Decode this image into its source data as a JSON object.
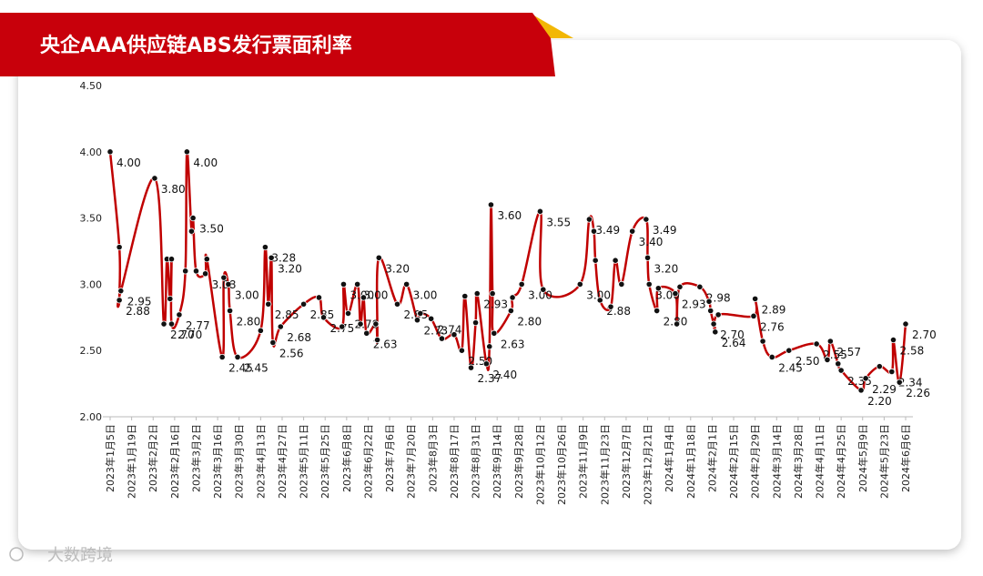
{
  "chart_data": {
    "type": "line",
    "title": "央企AAA供应链ABS发行票面利率",
    "watermark": "大数跨境",
    "ylim": [
      2,
      4.5
    ],
    "yticks": [
      {
        "value": 2,
        "label": "2.00"
      },
      {
        "value": 2.5,
        "label": "2.50"
      },
      {
        "value": 3,
        "label": "3.00"
      },
      {
        "value": 3.5,
        "label": "3.50"
      },
      {
        "value": 4,
        "label": "4.00"
      },
      {
        "value": 4.5,
        "label": "4.50"
      }
    ],
    "xlim": [
      "2023-01-05",
      "2024-06-06"
    ],
    "xticks": [
      {
        "value": "2023-01-05",
        "label": "2023年1月5日"
      },
      {
        "value": "2023-01-19",
        "label": "2023年1月19日"
      },
      {
        "value": "2023-02-02",
        "label": "2023年2月2日"
      },
      {
        "value": "2023-02-16",
        "label": "2023年2月16日"
      },
      {
        "value": "2023-03-02",
        "label": "2023年3月2日"
      },
      {
        "value": "2023-03-16",
        "label": "2023年3月16日"
      },
      {
        "value": "2023-03-30",
        "label": "2023年3月30日"
      },
      {
        "value": "2023-04-13",
        "label": "2023年4月13日"
      },
      {
        "value": "2023-04-27",
        "label": "2023年4月27日"
      },
      {
        "value": "2023-05-11",
        "label": "2023年5月11日"
      },
      {
        "value": "2023-05-25",
        "label": "2023年5月25日"
      },
      {
        "value": "2023-06-08",
        "label": "2023年6月8日"
      },
      {
        "value": "2023-06-22",
        "label": "2023年6月22日"
      },
      {
        "value": "2023-07-06",
        "label": "2023年7月6日"
      },
      {
        "value": "2023-07-20",
        "label": "2023年7月20日"
      },
      {
        "value": "2023-08-03",
        "label": "2023年8月3日"
      },
      {
        "value": "2023-08-17",
        "label": "2023年8月17日"
      },
      {
        "value": "2023-08-31",
        "label": "2023年8月31日"
      },
      {
        "value": "2023-09-14",
        "label": "2023年9月14日"
      },
      {
        "value": "2023-09-28",
        "label": "2023年9月28日"
      },
      {
        "value": "2023-10-12",
        "label": "2023年10月12日"
      },
      {
        "value": "2023-10-26",
        "label": "2023年10月26日"
      },
      {
        "value": "2023-11-09",
        "label": "2023年11月9日"
      },
      {
        "value": "2023-11-23",
        "label": "2023年11月23日"
      },
      {
        "value": "2023-12-07",
        "label": "2023年12月7日"
      },
      {
        "value": "2023-12-21",
        "label": "2023年12月21日"
      },
      {
        "value": "2024-01-04",
        "label": "2024年1月4日"
      },
      {
        "value": "2024-01-18",
        "label": "2024年1月18日"
      },
      {
        "value": "2024-02-01",
        "label": "2024年2月1日"
      },
      {
        "value": "2024-02-15",
        "label": "2024年2月15日"
      },
      {
        "value": "2024-02-29",
        "label": "2024年2月29日"
      },
      {
        "value": "2024-03-14",
        "label": "2024年3月14日"
      },
      {
        "value": "2024-03-28",
        "label": "2024年3月28日"
      },
      {
        "value": "2024-04-11",
        "label": "2024年4月11日"
      },
      {
        "value": "2024-04-25",
        "label": "2024年4月25日"
      },
      {
        "value": "2024-05-09",
        "label": "2024年5月9日"
      },
      {
        "value": "2024-05-23",
        "label": "2024年5月23日"
      },
      {
        "value": "2024-06-06",
        "label": "2024年6月6日"
      }
    ],
    "grid": false,
    "x": [
      "2023-01-05",
      "2023-01-11",
      "2023-01-11",
      "2023-01-12",
      "2023-02-03",
      "2023-02-09",
      "2023-02-11",
      "2023-02-13",
      "2023-02-14",
      "2023-02-14",
      "2023-02-19",
      "2023-02-23",
      "2023-02-24",
      "2023-02-27",
      "2023-02-28",
      "2023-03-02",
      "2023-03-08",
      "2023-03-09",
      "2023-03-19",
      "2023-03-20",
      "2023-03-23",
      "2023-03-24",
      "2023-03-29",
      "2023-04-13",
      "2023-04-16",
      "2023-04-18",
      "2023-04-20",
      "2023-04-21",
      "2023-04-26",
      "2023-05-11",
      "2023-05-21",
      "2023-05-24",
      "2023-06-05",
      "2023-06-06",
      "2023-06-09",
      "2023-06-15",
      "2023-06-17",
      "2023-06-19",
      "2023-06-21",
      "2023-06-27",
      "2023-06-28",
      "2023-06-29",
      "2023-07-11",
      "2023-07-17",
      "2023-07-24",
      "2023-07-26",
      "2023-08-02",
      "2023-08-09",
      "2023-08-17",
      "2023-08-22",
      "2023-08-24",
      "2023-08-28",
      "2023-08-31",
      "2023-09-01",
      "2023-09-07",
      "2023-09-09",
      "2023-09-10",
      "2023-09-11",
      "2023-09-12",
      "2023-09-23",
      "2023-09-24",
      "2023-09-30",
      "2023-10-12",
      "2023-10-14",
      "2023-11-07",
      "2023-11-13",
      "2023-11-16",
      "2023-11-17",
      "2023-11-20",
      "2023-11-27",
      "2023-11-30",
      "2023-12-04",
      "2023-12-11",
      "2023-12-20",
      "2023-12-21",
      "2023-12-22",
      "2023-12-27",
      "2023-12-28",
      "2024-01-08",
      "2024-01-09",
      "2024-01-11",
      "2024-01-24",
      "2024-01-30",
      "2024-01-31",
      "2024-02-02",
      "2024-02-03",
      "2024-02-05",
      "2024-02-28",
      "2024-02-29",
      "2024-03-05",
      "2024-03-11",
      "2024-03-22",
      "2024-04-09",
      "2024-04-16",
      "2024-04-18",
      "2024-04-23",
      "2024-04-25",
      "2024-05-08",
      "2024-05-11",
      "2024-05-20",
      "2024-05-28",
      "2024-05-29",
      "2024-06-02",
      "2024-06-06"
    ],
    "series": [
      {
        "color": "#c00000",
        "marker_color": "#111111",
        "values": [
          4.0,
          3.28,
          2.88,
          2.95,
          3.8,
          2.7,
          3.19,
          2.89,
          3.19,
          2.7,
          2.77,
          3.1,
          4.0,
          3.4,
          3.5,
          3.1,
          3.08,
          3.19,
          2.45,
          3.05,
          3.0,
          2.8,
          2.45,
          2.65,
          3.28,
          2.85,
          3.2,
          2.56,
          2.68,
          2.85,
          2.9,
          2.75,
          2.68,
          3.0,
          2.78,
          3.0,
          2.7,
          2.9,
          2.63,
          2.7,
          2.58,
          3.2,
          2.85,
          3.0,
          2.73,
          2.78,
          2.74,
          2.59,
          2.62,
          2.5,
          2.91,
          2.37,
          2.71,
          2.93,
          2.4,
          2.53,
          3.6,
          2.93,
          2.63,
          2.8,
          2.9,
          3.0,
          3.55,
          2.96,
          3.0,
          3.49,
          3.4,
          3.18,
          2.88,
          2.83,
          3.18,
          3.0,
          3.4,
          3.49,
          3.2,
          3.0,
          2.8,
          2.97,
          2.93,
          2.7,
          2.98,
          2.98,
          2.87,
          2.8,
          2.7,
          2.64,
          2.77,
          2.76,
          2.89,
          2.57,
          2.45,
          2.5,
          2.55,
          2.43,
          2.57,
          2.4,
          2.35,
          2.2,
          2.29,
          2.38,
          2.34,
          2.58,
          2.26,
          2.7
        ],
        "value_labels": [
          "4.00",
          null,
          "2.88",
          "2.95",
          "3.80",
          "2.70",
          null,
          null,
          null,
          "2.70",
          "2.77",
          null,
          "4.00",
          null,
          "3.50",
          null,
          "3.08",
          null,
          "2.45",
          null,
          "3.00",
          "2.80",
          "2.45",
          null,
          "3.28",
          "2.85",
          "3.20",
          "2.56",
          "2.68",
          "2.85",
          null,
          "2.75",
          null,
          "3.00",
          "2.78",
          "3.00",
          null,
          null,
          "2.63",
          null,
          null,
          "3.20",
          "2.85",
          "3.00",
          "2.73",
          null,
          "2.74",
          null,
          null,
          "2.50",
          null,
          "2.37",
          null,
          "2.93",
          "2.40",
          null,
          "3.60",
          null,
          "2.63",
          "2.80",
          null,
          "3.00",
          "3.55",
          null,
          "3.00",
          "3.49",
          null,
          null,
          "2.88",
          null,
          null,
          null,
          "3.40",
          "3.49",
          "3.20",
          "3.00",
          "2.80",
          null,
          "2.93",
          null,
          null,
          "2.98",
          null,
          null,
          "2.70",
          "2.64",
          null,
          "2.76",
          "2.89",
          null,
          "2.45",
          "2.50",
          "2.55",
          null,
          "2.57",
          null,
          "2.35",
          "2.20",
          "2.29",
          null,
          "2.34",
          "2.58",
          "2.26",
          "2.70"
        ]
      }
    ]
  }
}
